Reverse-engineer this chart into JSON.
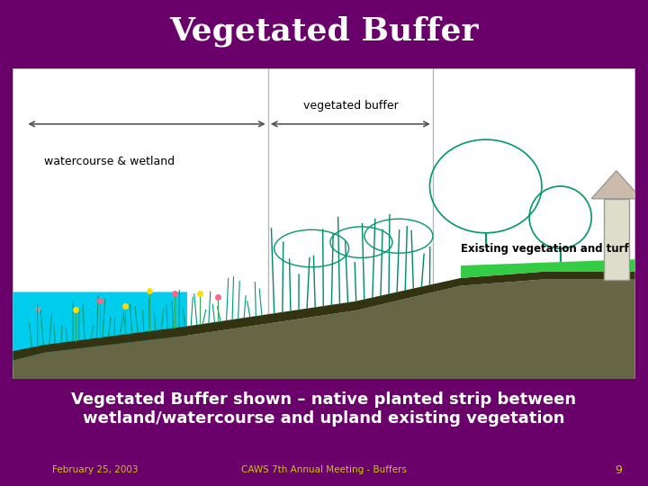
{
  "title": "Vegetated Buffer",
  "title_color": "#ffffff",
  "title_bg": "#9900aa",
  "slide_bg": "#6a006a",
  "content_bg": "#ffffff",
  "label_veg_buffer": "vegetated buffer",
  "label_watercourse": "watercourse & wetland",
  "label_existing": "Existing vegetation and turf",
  "footer_text1": "Vegetated Buffer shown – native planted strip between\nwetland/watercourse and upland existing vegetation",
  "footer_left": "February 25, 2003",
  "footer_center": "CAWS 7th Annual Meeting - Buffers",
  "footer_page": "9",
  "footer_text_color": "#ffffff",
  "footer_small_color": "#cccc00",
  "content_border": "#aaaaaa",
  "arrow_color": "#555555",
  "divider_color": "#888888",
  "water_color": "#00ccee",
  "ground_color": "#555533",
  "grass_color": "#33cc44",
  "plant_color": "#009966",
  "flower_yellow": "#ffdd00",
  "flower_pink": "#ff6688"
}
